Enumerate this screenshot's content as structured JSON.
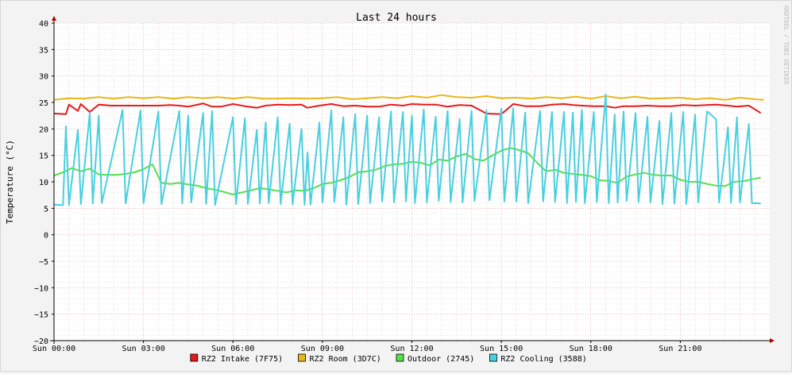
{
  "chart_data": {
    "type": "line",
    "title": "Last 24 hours",
    "ylabel": "Temperature (°C)",
    "watermark": "RRDTOOL / TOBI OETIKER",
    "ylim": [
      -20,
      40
    ],
    "xlim": [
      0,
      24
    ],
    "y_ticks": [
      40,
      35,
      30,
      25,
      20,
      15,
      10,
      5,
      0,
      -5,
      -10,
      -15,
      -20
    ],
    "y_tick_labels": [
      "40",
      "35",
      "30",
      "25",
      "20",
      "15",
      "10",
      "5",
      "0",
      "−5",
      "−10",
      "−15",
      "−20"
    ],
    "x_ticks": [
      0,
      3,
      6,
      9,
      12,
      15,
      18,
      21
    ],
    "x_tick_labels": [
      "Sun 00:00",
      "Sun 03:00",
      "Sun 06:00",
      "Sun 09:00",
      "Sun 12:00",
      "Sun 15:00",
      "Sun 18:00",
      "Sun 21:00"
    ],
    "legend_position": "bottom",
    "grid": true,
    "series": [
      {
        "name": "RZ2 Intake (7F75)",
        "color": "#e41a1c",
        "x": [
          0,
          0.4,
          0.5,
          0.8,
          0.9,
          1.2,
          1.5,
          1.9,
          2.3,
          2.6,
          3.0,
          3.5,
          3.9,
          4.2,
          4.5,
          5.0,
          5.3,
          5.6,
          6.0,
          6.4,
          6.8,
          7.1,
          7.5,
          7.9,
          8.3,
          8.5,
          8.9,
          9.3,
          9.7,
          10.1,
          10.5,
          10.9,
          11.3,
          11.7,
          12.0,
          12.4,
          12.8,
          13.2,
          13.6,
          14.0,
          14.5,
          15.0,
          15.4,
          15.8,
          16.3,
          16.7,
          17.1,
          17.4,
          17.7,
          18.1,
          18.5,
          18.8,
          19.1,
          19.5,
          19.9,
          20.3,
          20.7,
          21.1,
          21.5,
          21.9,
          22.2,
          22.6,
          22.9,
          23.3,
          23.7
        ],
        "y": [
          22.9,
          22.8,
          24.6,
          23.4,
          24.7,
          23.2,
          24.6,
          24.4,
          24.4,
          24.4,
          24.4,
          24.4,
          24.5,
          24.4,
          24.2,
          24.8,
          24.2,
          24.2,
          24.7,
          24.3,
          24.0,
          24.4,
          24.6,
          24.5,
          24.6,
          24.0,
          24.4,
          24.7,
          24.3,
          24.4,
          24.2,
          24.2,
          24.6,
          24.4,
          24.7,
          24.6,
          24.6,
          24.2,
          24.5,
          24.4,
          22.9,
          22.8,
          24.7,
          24.3,
          24.3,
          24.6,
          24.7,
          24.5,
          24.4,
          24.3,
          24.3,
          24.0,
          24.3,
          24.3,
          24.4,
          24.3,
          24.3,
          24.5,
          24.4,
          24.5,
          24.6,
          24.4,
          24.2,
          24.4,
          23.0
        ]
      },
      {
        "name": "RZ2 Room (3D7C)",
        "color": "#e8b81a",
        "x": [
          0,
          0.5,
          1.0,
          1.5,
          2.0,
          2.5,
          3.0,
          3.5,
          4.0,
          4.5,
          5.0,
          5.5,
          6.0,
          6.5,
          7.0,
          7.5,
          8.0,
          8.5,
          9.0,
          9.5,
          10.0,
          10.5,
          11.0,
          11.5,
          12.0,
          12.5,
          13.0,
          13.5,
          14.0,
          14.5,
          15.0,
          15.5,
          16.0,
          16.5,
          17.0,
          17.5,
          18.0,
          18.5,
          19.0,
          19.5,
          20.0,
          20.5,
          21.0,
          21.5,
          22.0,
          22.5,
          23.0,
          23.5,
          23.8
        ],
        "y": [
          25.5,
          25.8,
          25.7,
          26.0,
          25.7,
          26.0,
          25.8,
          26.0,
          25.7,
          26.0,
          25.8,
          26.0,
          25.7,
          26.0,
          25.7,
          25.7,
          25.8,
          25.7,
          25.8,
          26.0,
          25.6,
          25.8,
          26.0,
          25.8,
          26.2,
          25.9,
          26.4,
          26.0,
          25.9,
          26.2,
          25.8,
          25.9,
          25.7,
          26.0,
          25.8,
          26.1,
          25.7,
          26.2,
          25.8,
          26.1,
          25.7,
          25.8,
          25.9,
          25.6,
          25.8,
          25.5,
          25.9,
          25.6,
          25.5
        ]
      },
      {
        "name": "Outdoor (2745)",
        "color": "#54e04a",
        "x": [
          0,
          0.3,
          0.6,
          0.9,
          1.2,
          1.5,
          1.8,
          2.1,
          2.4,
          2.7,
          3.0,
          3.3,
          3.6,
          3.9,
          4.2,
          4.5,
          4.8,
          5.1,
          5.4,
          5.7,
          6.0,
          6.3,
          6.6,
          6.9,
          7.2,
          7.5,
          7.8,
          8.1,
          8.4,
          8.7,
          9.0,
          9.3,
          9.6,
          9.9,
          10.2,
          10.5,
          10.8,
          11.1,
          11.4,
          11.7,
          12.0,
          12.3,
          12.6,
          12.9,
          13.2,
          13.5,
          13.8,
          14.1,
          14.4,
          14.7,
          15.0,
          15.3,
          15.6,
          15.9,
          16.2,
          16.5,
          16.8,
          17.1,
          17.4,
          17.7,
          18.0,
          18.3,
          18.6,
          18.9,
          19.2,
          19.5,
          19.8,
          20.1,
          20.4,
          20.7,
          21.0,
          21.3,
          21.6,
          21.9,
          22.2,
          22.5,
          22.8,
          23.1,
          23.4,
          23.7
        ],
        "y": [
          11.2,
          11.8,
          12.6,
          12.0,
          12.5,
          11.4,
          11.3,
          11.3,
          11.5,
          11.8,
          12.4,
          13.3,
          9.8,
          9.6,
          9.8,
          9.5,
          9.3,
          8.8,
          8.5,
          8.1,
          7.6,
          8.0,
          8.4,
          8.8,
          8.6,
          8.3,
          8.0,
          8.4,
          8.3,
          8.8,
          9.6,
          9.8,
          10.3,
          10.9,
          11.8,
          12.0,
          12.3,
          13.0,
          13.3,
          13.4,
          13.8,
          13.6,
          13.1,
          14.2,
          14.0,
          14.8,
          15.3,
          14.3,
          14.0,
          15.0,
          15.9,
          16.4,
          16.0,
          15.4,
          13.6,
          12.0,
          12.3,
          11.7,
          11.5,
          11.3,
          11.1,
          10.3,
          10.2,
          9.8,
          11.0,
          11.4,
          11.7,
          11.3,
          11.2,
          11.2,
          10.4,
          10.0,
          10.0,
          9.6,
          9.3,
          9.2,
          10.0,
          10.1,
          10.5,
          10.8
        ]
      },
      {
        "name": "RZ2 Cooling (3588)",
        "color": "#48d0e0",
        "x": [
          0,
          0.3,
          0.4,
          0.5,
          0.8,
          0.9,
          1.2,
          1.3,
          1.5,
          1.6,
          2.3,
          2.4,
          2.9,
          3.0,
          3.5,
          3.6,
          4.2,
          4.3,
          4.5,
          4.6,
          5.0,
          5.1,
          5.3,
          5.4,
          6.0,
          6.1,
          6.4,
          6.5,
          6.8,
          6.9,
          7.1,
          7.2,
          7.5,
          7.6,
          7.9,
          8.0,
          8.3,
          8.4,
          8.5,
          8.6,
          8.9,
          9.0,
          9.3,
          9.4,
          9.7,
          9.8,
          10.1,
          10.2,
          10.5,
          10.6,
          10.9,
          11.0,
          11.3,
          11.4,
          11.7,
          11.8,
          12.0,
          12.1,
          12.4,
          12.5,
          12.8,
          12.9,
          13.2,
          13.3,
          13.6,
          13.7,
          14.0,
          14.1,
          14.5,
          14.6,
          15.0,
          15.1,
          15.4,
          15.5,
          15.8,
          15.9,
          16.3,
          16.4,
          16.7,
          16.8,
          17.1,
          17.2,
          17.4,
          17.5,
          17.7,
          17.8,
          18.1,
          18.2,
          18.5,
          18.6,
          18.8,
          18.9,
          19.1,
          19.2,
          19.5,
          19.6,
          19.9,
          20.0,
          20.3,
          20.4,
          20.7,
          20.8,
          21.1,
          21.2,
          21.5,
          21.6,
          21.9,
          22.2,
          22.3,
          22.6,
          22.7,
          22.9,
          23.0,
          23.3,
          23.4,
          23.7
        ],
        "y": [
          5.7,
          5.6,
          20.5,
          5.6,
          19.8,
          5.8,
          23.0,
          5.9,
          22.5,
          6.0,
          23.6,
          5.9,
          23.5,
          6.0,
          23.3,
          5.8,
          23.4,
          5.9,
          22.5,
          6.1,
          23.0,
          5.8,
          23.4,
          5.6,
          22.2,
          5.8,
          22.0,
          5.8,
          19.8,
          5.9,
          21.2,
          6.0,
          22.2,
          5.8,
          21.0,
          5.7,
          20.0,
          5.6,
          15.6,
          5.7,
          21.2,
          6.1,
          23.5,
          6.2,
          22.2,
          5.7,
          22.8,
          5.8,
          22.5,
          6.0,
          22.2,
          6.3,
          23.3,
          6.1,
          23.2,
          6.3,
          22.5,
          6.0,
          23.7,
          6.1,
          22.3,
          6.4,
          23.4,
          6.2,
          21.9,
          6.1,
          23.4,
          6.4,
          23.5,
          6.5,
          23.8,
          6.3,
          23.9,
          6.3,
          23.1,
          6.0,
          23.4,
          6.3,
          23.2,
          6.2,
          23.2,
          6.0,
          23.1,
          6.2,
          23.6,
          6.0,
          23.2,
          6.2,
          26.5,
          6.0,
          22.7,
          6.1,
          23.3,
          6.4,
          23.0,
          6.2,
          22.3,
          6.1,
          21.5,
          5.8,
          23.0,
          5.9,
          23.2,
          5.8,
          22.7,
          6.1,
          23.3,
          21.8,
          6.1,
          20.3,
          6.0,
          22.2,
          6.1,
          20.9,
          6.0,
          5.9
        ]
      }
    ]
  }
}
